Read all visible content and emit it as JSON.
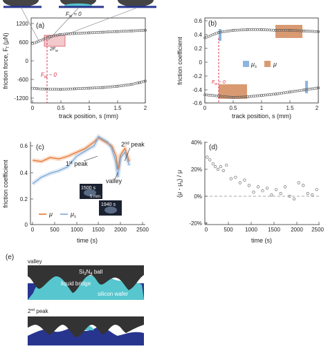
{
  "figure": {
    "panel_labels": {
      "a": "(a)",
      "b": "(b)",
      "c": "(c)",
      "d": "(d)",
      "e": "(e)"
    },
    "panel_a": {
      "ylabel": "friction force, F",
      "ylabel_sub": "f",
      "ylabel_unit": " (μN)",
      "xlabel": "track position, s (mm)",
      "yticks": [
        "1200",
        "600",
        "0",
        "-600",
        "-1200"
      ],
      "xticks": [
        "0",
        "0.5",
        "1",
        "1.5",
        "2"
      ],
      "annot_fw0_top": "F",
      "annot_fw0_top_sub": "w",
      "annot_fw0_top_val": " ≈ 0",
      "annot_fw0_red": "F",
      "annot_fw0_red_sub": "w",
      "annot_fw0_red_val": " ~ 0",
      "annot_2fw": "2F",
      "annot_2fw_sub": "w"
    },
    "panel_b": {
      "ylabel": "friction coefficient",
      "xlabel": "track position, s (mm)",
      "yticks": [
        "0.6",
        "0.4",
        "0.2",
        "0",
        "-0.2",
        "-0.4",
        "-0.6"
      ],
      "xticks": [
        "0",
        "0.5",
        "1",
        "1.5",
        "2"
      ],
      "legend_mus": "μ",
      "legend_mus_sub": "s",
      "legend_mu": "μ",
      "annot_fw0": "F",
      "annot_fw0_sub": "w",
      "annot_fw0_val": " ~ 0"
    },
    "panel_c": {
      "ylabel": "friction coefficient",
      "xlabel": "time (s)",
      "yticks": [
        "0.6",
        "0.4",
        "0.2",
        "0"
      ],
      "xticks": [
        "0",
        "500",
        "1000",
        "1500",
        "2000",
        "2500"
      ],
      "peak1": "1",
      "peak1_sup": "st",
      "peak1_rest": " peak",
      "peak2": "2",
      "peak2_sup": "nd",
      "peak2_rest": " peak",
      "valley": "valley",
      "inset1_time": "1500 s",
      "inset1_scale": "5 mm",
      "inset2_time": "1940 s",
      "legend_mu": "μ",
      "legend_mus": "μ",
      "legend_mus_sub": "s"
    },
    "panel_d": {
      "ylabel": "(μ - μ",
      "ylabel_sub": "s",
      "ylabel_rest": ") / μ",
      "xlabel": "time (s)",
      "yticks": [
        "40%",
        "20%",
        "0%",
        "-20%"
      ],
      "xticks": [
        "0",
        "500",
        "1000",
        "1500",
        "2000",
        "2500"
      ]
    },
    "panel_e": {
      "top_title": "valley",
      "top_ball": "Si",
      "top_ball_sub1": "3",
      "top_ball_mid": "N",
      "top_ball_sub2": "4",
      "top_ball_rest": " ball",
      "top_bridge": "liquid bridge",
      "top_wafer": "silicon wafer",
      "bottom_title": "2",
      "bottom_title_sup": "nd",
      "bottom_title_rest": " peak"
    }
  },
  "colors": {
    "orange": "#e8742a",
    "blue": "#7ba7d6",
    "red": "#d22a3a",
    "pink_fill": "#f3c9cc",
    "salmon": "#d99a72",
    "lightblue_box": "#8db6dd",
    "ball": "#333333",
    "liquid": "#57c6cf",
    "wafer": "#27358f"
  },
  "chart_data": [
    {
      "panel": "a",
      "type": "scatter",
      "xlabel": "track position, s (mm)",
      "ylabel": "friction force, Ff (μN)",
      "xlim": [
        0,
        2
      ],
      "ylim": [
        -1200,
        1200
      ],
      "series": [
        {
          "x": [
            0.0,
            0.1,
            0.2,
            0.3,
            0.5,
            0.75,
            1.0,
            1.25,
            1.5,
            1.75,
            2.0
          ],
          "y": [
            550,
            620,
            700,
            770,
            850,
            880,
            900,
            920,
            940,
            960,
            980
          ]
        },
        {
          "x": [
            0.0,
            0.1,
            0.25,
            0.5,
            0.75,
            1.0,
            1.25,
            1.5,
            1.75,
            1.9,
            2.0
          ],
          "y": [
            -880,
            -900,
            -910,
            -920,
            -900,
            -880,
            -860,
            -820,
            -760,
            -700,
            -650
          ]
        }
      ]
    },
    {
      "panel": "b",
      "type": "scatter",
      "xlabel": "track position, s (mm)",
      "ylabel": "friction coefficient",
      "xlim": [
        0,
        2
      ],
      "ylim": [
        -0.6,
        0.6
      ],
      "series": [
        {
          "x": [
            0.0,
            0.25,
            0.5,
            0.75,
            1.0,
            1.25,
            1.5,
            1.75,
            2.0
          ],
          "y": [
            0.35,
            0.43,
            0.46,
            0.47,
            0.47,
            0.46,
            0.46,
            0.45,
            0.44
          ]
        },
        {
          "x": [
            0.0,
            0.25,
            0.5,
            0.75,
            1.0,
            1.25,
            1.5,
            1.75,
            2.0
          ],
          "y": [
            -0.48,
            -0.5,
            -0.52,
            -0.51,
            -0.49,
            -0.47,
            -0.44,
            -0.41,
            -0.38
          ]
        }
      ]
    },
    {
      "panel": "c",
      "type": "line",
      "xlabel": "time (s)",
      "ylabel": "friction coefficient",
      "xlim": [
        0,
        2500
      ],
      "ylim": [
        0,
        0.7
      ],
      "series": [
        {
          "name": "μ",
          "x": [
            0,
            200,
            400,
            600,
            800,
            1000,
            1200,
            1400,
            1500,
            1600,
            1700,
            1800,
            1900,
            1940,
            2000,
            2100,
            2200
          ],
          "y": [
            0.49,
            0.48,
            0.51,
            0.5,
            0.52,
            0.55,
            0.58,
            0.63,
            0.66,
            0.64,
            0.62,
            0.6,
            0.52,
            0.42,
            0.53,
            0.58,
            0.48
          ]
        },
        {
          "name": "μs",
          "x": [
            0,
            200,
            400,
            600,
            800,
            1000,
            1200,
            1400,
            1500,
            1600,
            1700,
            1800,
            1900,
            1940,
            2000,
            2100,
            2200
          ],
          "y": [
            0.31,
            0.36,
            0.39,
            0.41,
            0.44,
            0.52,
            0.56,
            0.6,
            0.67,
            0.65,
            0.63,
            0.58,
            0.47,
            0.36,
            0.51,
            0.55,
            0.45
          ]
        }
      ]
    },
    {
      "panel": "d",
      "type": "scatter",
      "xlabel": "time (s)",
      "ylabel": "(μ - μs) / μ",
      "xlim": [
        0,
        2500
      ],
      "ylim": [
        -0.2,
        0.4
      ],
      "series": [
        {
          "x": [
            20,
            80,
            150,
            200,
            260,
            320,
            380,
            450,
            550,
            650,
            750,
            850,
            950,
            1050,
            1150,
            1250,
            1350,
            1450,
            1550,
            1650,
            1750,
            1850,
            1950,
            2050,
            2150,
            2250,
            2350,
            2450
          ],
          "y": [
            0.29,
            0.27,
            0.24,
            0.22,
            0.2,
            0.22,
            0.19,
            0.23,
            0.13,
            0.14,
            0.1,
            0.12,
            0.08,
            0.03,
            0.07,
            0.04,
            0.06,
            0.01,
            0.05,
            0.02,
            0.07,
            0.0,
            -0.02,
            0.1,
            0.08,
            0.02,
            0.01,
            0.05
          ]
        }
      ]
    }
  ]
}
